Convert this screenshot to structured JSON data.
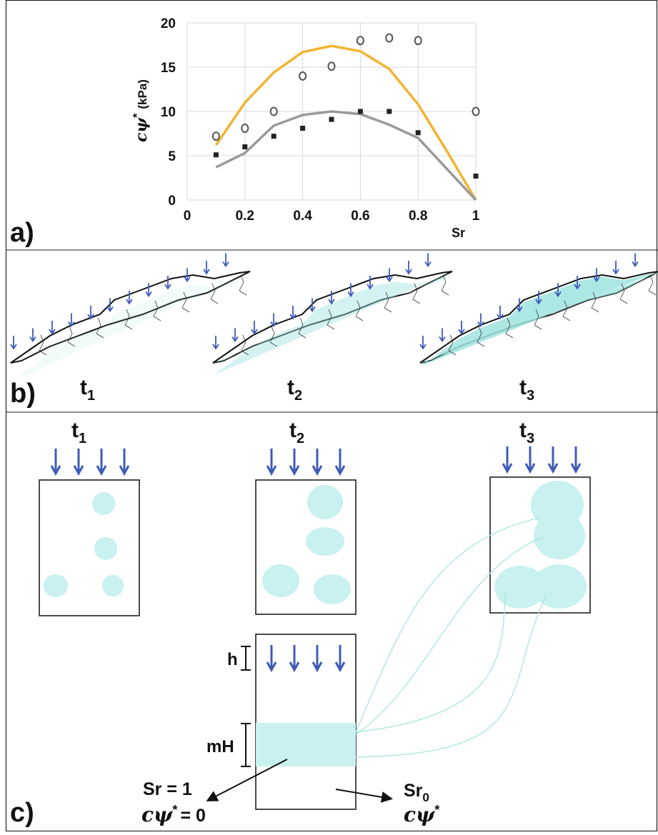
{
  "chart_data": {
    "type": "scatter",
    "ylabel": {
      "symbol": "cψ",
      "sup": "*",
      "unit": "(kPa)"
    },
    "xlabel": "Sr",
    "xlim": [
      0,
      1
    ],
    "ylim": [
      0,
      20
    ],
    "xticks": [
      0,
      0.2,
      0.4,
      0.6,
      0.8,
      1
    ],
    "yticks": [
      0,
      5,
      10,
      15,
      20
    ],
    "grid": true,
    "series": [
      {
        "type": "line",
        "color": "#f2b431",
        "x": [
          0.1,
          0.2,
          0.3,
          0.4,
          0.5,
          0.6,
          0.7,
          0.8,
          0.9,
          1
        ],
        "values": [
          6.2,
          11,
          14.4,
          16.7,
          17.4,
          16.8,
          14.8,
          10.8,
          5.5,
          0
        ]
      },
      {
        "type": "line",
        "color": "#9a9a9a",
        "x": [
          0.1,
          0.2,
          0.3,
          0.4,
          0.5,
          0.6,
          0.7,
          0.8,
          0.9,
          1
        ],
        "values": [
          3.7,
          5.3,
          8.4,
          9.6,
          10,
          9.7,
          8.5,
          7,
          3.5,
          0
        ]
      },
      {
        "type": "scatter",
        "marker": "circle",
        "color": "#555555",
        "x": [
          0.1,
          0.2,
          0.3,
          0.4,
          0.5,
          0.6,
          0.7,
          0.8,
          1
        ],
        "values": [
          7.2,
          8.1,
          10,
          14,
          15.1,
          18,
          18.3,
          18,
          10
        ]
      },
      {
        "type": "scatter",
        "marker": "square",
        "color": "#222222",
        "x": [
          0.1,
          0.2,
          0.3,
          0.4,
          0.5,
          0.6,
          0.7,
          0.8,
          1
        ],
        "values": [
          5.1,
          6,
          7.2,
          8.1,
          9.1,
          10,
          10,
          7.6,
          2.7
        ]
      }
    ]
  },
  "panels": {
    "a": "a)",
    "b": "b)",
    "c": "c)"
  },
  "panel_b": {
    "labels": [
      {
        "base": "t",
        "sub": "1"
      },
      {
        "base": "t",
        "sub": "2"
      },
      {
        "base": "t",
        "sub": "3"
      }
    ]
  },
  "panel_c": {
    "labels": [
      {
        "base": "t",
        "sub": "1"
      },
      {
        "base": "t",
        "sub": "2"
      },
      {
        "base": "t",
        "sub": "3"
      }
    ],
    "h": "h",
    "mH": "mH",
    "left": {
      "line1": "Sr = 1",
      "symbol": "cψ",
      "sup": "*",
      "rest": "= 0"
    },
    "right": {
      "base": "Sr",
      "sub": "0",
      "symbol": "cψ",
      "sup": "*"
    }
  }
}
